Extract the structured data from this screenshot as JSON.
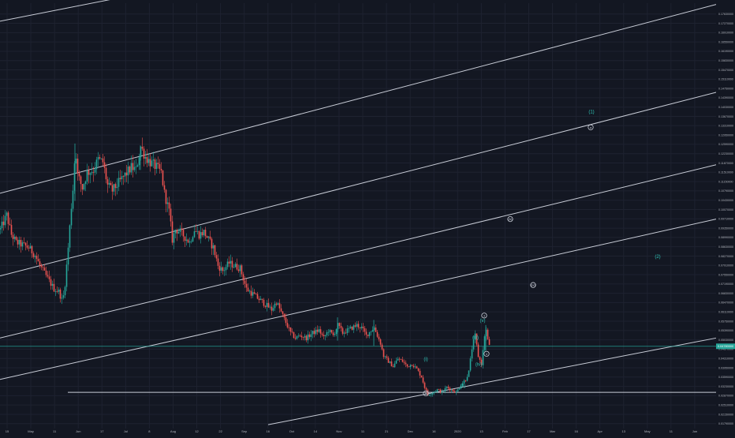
{
  "colors": {
    "background": "#131722",
    "grid": "#1e2230",
    "channel": "#c8ccd6",
    "up": "#26a69a",
    "down": "#ef5350",
    "wave_label": "#2ec4b6",
    "axis_text": "#b2b5be",
    "price_tag": "#26a69a"
  },
  "chart_data": {
    "type": "candlestick",
    "x": {
      "tick_labels": [
        "15",
        "May",
        "11",
        "Jun",
        "17",
        "Jul",
        "8",
        "Aug",
        "12",
        "22",
        "Sep",
        "16",
        "Oct",
        "14",
        "Nov",
        "11",
        "21",
        "Dec",
        "16",
        "2020",
        "13",
        "Feb",
        "17",
        "Mar",
        "16",
        "Apr",
        "13",
        "May",
        "11",
        "Jun"
      ]
    },
    "y": {
      "range": [
        0.016,
        0.1805
      ],
      "tick_values": [
        0.0179,
        0.0215,
        0.0251,
        0.0287,
        0.0323,
        0.0359,
        0.0395,
        0.0431,
        0.0467,
        0.0503,
        0.0539,
        0.0575,
        0.0611,
        0.0647,
        0.0683,
        0.0719,
        0.0755,
        0.0791,
        0.0827,
        0.0863,
        0.0899,
        0.0935,
        0.0971,
        0.1007,
        0.1043,
        0.1079,
        0.1115,
        0.1151,
        0.1187,
        0.1223,
        0.1259,
        0.1295,
        0.1331,
        0.1367,
        0.1403,
        0.1439,
        0.1475,
        0.1511,
        0.1547,
        0.1583,
        0.1619,
        0.1655,
        0.1691,
        0.1727,
        0.1763
      ],
      "tick_labels": [
        "0.01790000",
        "0.02150000",
        "0.02510000",
        "0.02870000",
        "0.03230000",
        "0.03590000",
        "0.03950000",
        "0.04310000",
        "0.04670000",
        "0.05030000",
        "0.05390000",
        "0.05750000",
        "0.06110000",
        "0.06470000",
        "0.06830000",
        "0.07190000",
        "0.07550000",
        "0.07910000",
        "0.08270000",
        "0.08630000",
        "0.08990000",
        "0.09350000",
        "0.09710000",
        "0.10070000",
        "0.10430000",
        "0.10790000",
        "0.11150000",
        "0.11510000",
        "0.11870000",
        "0.12230000",
        "0.12590000",
        "0.12950000",
        "0.13310000",
        "0.13670000",
        "0.14030000",
        "0.14390000",
        "0.14750000",
        "0.15110000",
        "0.15470000",
        "0.15830000",
        "0.16190000",
        "0.16550000",
        "0.16910000",
        "0.17270000",
        "0.17630000"
      ],
      "last_price": 0.0478,
      "last_price_label": "0.04780000"
    },
    "price_path": [
      [
        0,
        0.093
      ],
      [
        8,
        0.0985
      ],
      [
        14,
        0.091
      ],
      [
        20,
        0.088
      ],
      [
        28,
        0.087
      ],
      [
        36,
        0.086
      ],
      [
        44,
        0.083
      ],
      [
        50,
        0.079
      ],
      [
        56,
        0.076
      ],
      [
        62,
        0.073
      ],
      [
        68,
        0.07
      ],
      [
        74,
        0.069
      ],
      [
        79,
        0.065
      ],
      [
        82,
        0.072
      ],
      [
        86,
        0.086
      ],
      [
        90,
        0.102
      ],
      [
        93,
        0.112
      ],
      [
        95,
        0.126
      ],
      [
        98,
        0.114
      ],
      [
        104,
        0.109
      ],
      [
        110,
        0.115
      ],
      [
        118,
        0.116
      ],
      [
        124,
        0.12
      ],
      [
        130,
        0.119
      ],
      [
        136,
        0.11
      ],
      [
        142,
        0.108
      ],
      [
        150,
        0.111
      ],
      [
        158,
        0.114
      ],
      [
        166,
        0.117
      ],
      [
        172,
        0.116
      ],
      [
        178,
        0.125
      ],
      [
        184,
        0.121
      ],
      [
        190,
        0.119
      ],
      [
        198,
        0.117
      ],
      [
        204,
        0.115
      ],
      [
        208,
        0.107
      ],
      [
        214,
        0.1
      ],
      [
        218,
        0.089
      ],
      [
        222,
        0.093
      ],
      [
        228,
        0.092
      ],
      [
        234,
        0.09
      ],
      [
        240,
        0.088
      ],
      [
        246,
        0.093
      ],
      [
        252,
        0.091
      ],
      [
        258,
        0.092
      ],
      [
        264,
        0.089
      ],
      [
        270,
        0.086
      ],
      [
        276,
        0.079
      ],
      [
        282,
        0.077
      ],
      [
        290,
        0.08
      ],
      [
        296,
        0.079
      ],
      [
        304,
        0.078
      ],
      [
        312,
        0.07
      ],
      [
        320,
        0.068
      ],
      [
        328,
        0.066
      ],
      [
        336,
        0.064
      ],
      [
        344,
        0.062
      ],
      [
        350,
        0.065
      ],
      [
        356,
        0.061
      ],
      [
        362,
        0.057
      ],
      [
        368,
        0.053
      ],
      [
        374,
        0.051
      ],
      [
        380,
        0.052
      ],
      [
        388,
        0.051
      ],
      [
        396,
        0.053
      ],
      [
        404,
        0.054
      ],
      [
        410,
        0.051
      ],
      [
        416,
        0.054
      ],
      [
        422,
        0.052
      ],
      [
        428,
        0.056
      ],
      [
        434,
        0.053
      ],
      [
        440,
        0.054
      ],
      [
        446,
        0.055
      ],
      [
        452,
        0.056
      ],
      [
        458,
        0.055
      ],
      [
        464,
        0.052
      ],
      [
        470,
        0.054
      ],
      [
        474,
        0.055
      ],
      [
        478,
        0.052
      ],
      [
        482,
        0.049
      ],
      [
        486,
        0.044
      ],
      [
        492,
        0.042
      ],
      [
        498,
        0.04
      ],
      [
        504,
        0.043
      ],
      [
        510,
        0.042
      ],
      [
        516,
        0.04
      ],
      [
        522,
        0.041
      ],
      [
        528,
        0.039
      ],
      [
        534,
        0.036
      ],
      [
        538,
        0.032
      ],
      [
        542,
        0.029
      ],
      [
        548,
        0.03
      ],
      [
        554,
        0.031
      ],
      [
        560,
        0.03
      ],
      [
        566,
        0.032
      ],
      [
        572,
        0.031
      ],
      [
        578,
        0.03
      ],
      [
        584,
        0.033
      ],
      [
        590,
        0.035
      ],
      [
        594,
        0.038
      ],
      [
        598,
        0.047
      ],
      [
        602,
        0.052
      ],
      [
        606,
        0.044
      ],
      [
        610,
        0.041
      ],
      [
        612,
        0.046
      ],
      [
        614,
        0.052
      ],
      [
        616,
        0.054
      ],
      [
        618,
        0.05
      ],
      [
        621,
        0.0478
      ]
    ],
    "channel_lines": [
      [
        [
          0,
          0.1735
        ],
        [
          150,
          0.1825
        ]
      ],
      [
        [
          0,
          0.107
        ],
        [
          908,
          0.18
        ]
      ],
      [
        [
          0,
          0.075
        ],
        [
          908,
          0.146
        ]
      ],
      [
        [
          0,
          0.051
        ],
        [
          908,
          0.118
        ]
      ],
      [
        [
          0,
          0.035
        ],
        [
          908,
          0.097
        ]
      ],
      [
        [
          340,
          0.0175
        ],
        [
          908,
          0.051
        ]
      ]
    ],
    "horizontal_lines": [
      {
        "x_start": 86,
        "x_end": 908,
        "y": 0.03
      },
      {
        "x_start": 0,
        "x_end": 908,
        "y": 0.0478
      }
    ],
    "wave_labels": [
      {
        "text": "(1)",
        "x": 750,
        "y": 0.1385,
        "circled": false
      },
      {
        "text": "a",
        "x": 749,
        "y": 0.1325,
        "circled": true
      },
      {
        "text": "(b)",
        "x": 647,
        "y": 0.097,
        "circled": true
      },
      {
        "text": "(2)",
        "x": 834,
        "y": 0.0825,
        "circled": false
      },
      {
        "text": "(w)",
        "x": 676,
        "y": 0.0715,
        "circled": true
      },
      {
        "text": "3",
        "x": 614,
        "y": 0.0597,
        "circled": true
      },
      {
        "text": "(v)",
        "x": 612,
        "y": 0.0578,
        "circled": false
      },
      {
        "text": "(iii)",
        "x": 603,
        "y": 0.0512,
        "circled": false
      },
      {
        "text": "4",
        "x": 617,
        "y": 0.0449,
        "circled": true
      },
      {
        "text": "(iv)",
        "x": 607,
        "y": 0.0408,
        "circled": false
      },
      {
        "text": "(i)",
        "x": 540,
        "y": 0.0428,
        "circled": false
      },
      {
        "text": "(ii)",
        "x": 587,
        "y": 0.0327,
        "circled": false
      },
      {
        "text": "A",
        "x": 540,
        "y": 0.0296,
        "circled": true
      }
    ]
  }
}
